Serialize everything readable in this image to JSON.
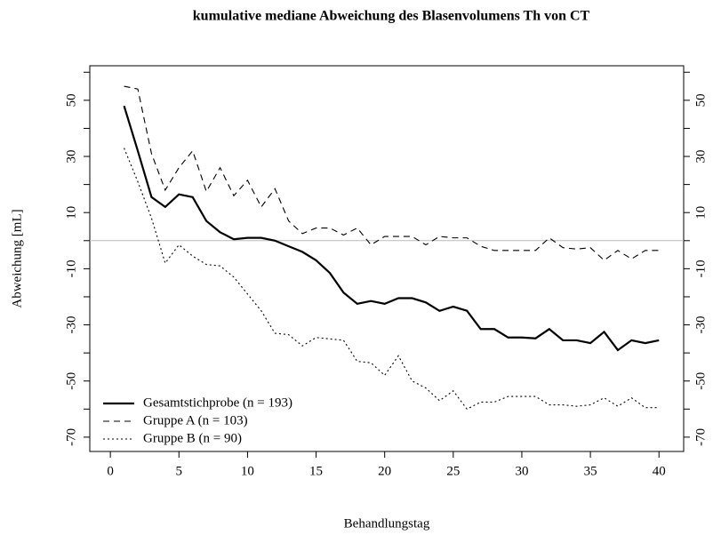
{
  "chart_data": {
    "type": "line",
    "title": "kumulative mediane Abweichung des Blasenvolumens Th von CT",
    "x_label": "Behandlungstag",
    "y_label": "Abweichung [mL]",
    "x": [
      1,
      2,
      3,
      4,
      5,
      6,
      7,
      8,
      9,
      10,
      11,
      12,
      13,
      14,
      15,
      16,
      17,
      18,
      19,
      20,
      21,
      22,
      23,
      24,
      25,
      26,
      27,
      28,
      29,
      30,
      31,
      32,
      33,
      34,
      35,
      36,
      37,
      38,
      39,
      40
    ],
    "series": [
      {
        "name": "Gesamtstichprobe (n = 193)",
        "color": "#000000",
        "linestyle": "solid",
        "values": [
          48,
          32,
          15.5,
          12,
          16.5,
          15.5,
          7,
          3,
          0.5,
          1,
          1,
          0,
          -2,
          -4,
          -7,
          -11.5,
          -18.5,
          -22.5,
          -21.5,
          -22.5,
          -20.5,
          -20.5,
          -22,
          -25,
          -23.5,
          -25,
          -31.5,
          -31.5,
          -34.5,
          -34.5,
          -34.8,
          -31.5,
          -35.5,
          -35.5,
          -36.5,
          -32.5,
          -39,
          -35.5,
          -36.5,
          -35.5
        ]
      },
      {
        "name": "Gruppe A (n = 103)",
        "color": "#000000",
        "linestyle": "dashed",
        "values": [
          55,
          54,
          31,
          18,
          26,
          32,
          17.5,
          26,
          16,
          21.5,
          12,
          18.5,
          7,
          2.5,
          4.5,
          4.5,
          2,
          4.5,
          -1.5,
          1.5,
          1.5,
          1.5,
          -1.5,
          1.5,
          1,
          1,
          -2,
          -3.5,
          -3.5,
          -3.5,
          -3.5,
          1,
          -2.5,
          -3,
          -2.5,
          -7,
          -3.5,
          -6.5,
          -3.5,
          -3.5
        ]
      },
      {
        "name": "Gruppe B (n = 90)",
        "color": "#000000",
        "linestyle": "dotted",
        "values": [
          33,
          21,
          8,
          -8,
          -1.5,
          -5.5,
          -8.5,
          -9,
          -13,
          -19,
          -25,
          -33,
          -33.5,
          -37.5,
          -34.5,
          -35,
          -35.5,
          -43,
          -43.5,
          -48,
          -41,
          -50,
          -52.5,
          -57,
          -53.5,
          -60,
          -57.5,
          -57.5,
          -55.5,
          -55.5,
          -55.5,
          -58.5,
          -58.5,
          -59,
          -58.5,
          -56,
          -59,
          -56,
          -59.5,
          -59.5
        ]
      }
    ],
    "xlim": [
      -1.5,
      41.8
    ],
    "ylim": [
      -75.1,
      62.3
    ],
    "xticks": [
      0,
      5,
      10,
      15,
      20,
      25,
      30,
      35,
      40
    ],
    "yticks": [
      50,
      30,
      10,
      -10,
      -30,
      -50,
      -70
    ],
    "yminorticks": [
      60,
      40,
      20,
      0,
      -20,
      -40,
      -60
    ],
    "hline": 0,
    "hline_color": "#bbbbbb",
    "legend": "bottom-left",
    "right_axis": true
  }
}
